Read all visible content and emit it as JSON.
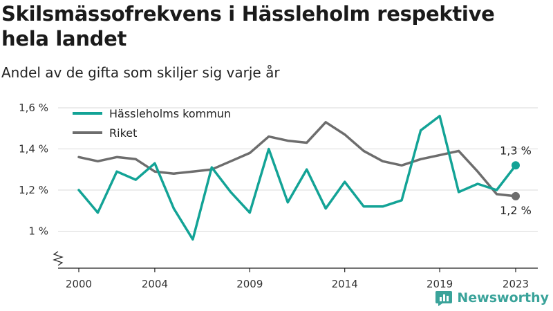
{
  "title": "Skilsmässofrekvens i Hässleholm respektive hela landet",
  "subtitle": "Andel av de gifta som skiljer sig varje år",
  "brand": {
    "name": "Newsworthy",
    "icon": "newsworthy-logo-icon",
    "color": "#3aa39a"
  },
  "chart_data": {
    "type": "line",
    "x": [
      2000,
      2001,
      2002,
      2003,
      2004,
      2005,
      2006,
      2007,
      2008,
      2009,
      2010,
      2011,
      2012,
      2013,
      2014,
      2015,
      2016,
      2017,
      2018,
      2019,
      2020,
      2021,
      2022,
      2023
    ],
    "x_ticks": [
      2000,
      2004,
      2009,
      2014,
      2019,
      2023
    ],
    "x_tick_labels": [
      "2000",
      "2004",
      "2009",
      "2014",
      "2019",
      "2023"
    ],
    "y_ticks": [
      1.0,
      1.2,
      1.4,
      1.6
    ],
    "y_tick_labels": [
      "1 %",
      "1,2 %",
      "1,4 %",
      "1,6 %"
    ],
    "ylim": [
      0.82,
      1.62
    ],
    "y_axis_break": true,
    "grid": "horizontal",
    "legend_position": "top-left",
    "series": [
      {
        "name": "Hässleholms kommun",
        "color": "#13a396",
        "values": [
          1.2,
          1.09,
          1.29,
          1.25,
          1.33,
          1.11,
          0.96,
          1.31,
          1.19,
          1.09,
          1.4,
          1.14,
          1.3,
          1.11,
          1.24,
          1.12,
          1.12,
          1.15,
          1.49,
          1.56,
          1.19,
          1.23,
          1.2,
          1.32
        ],
        "end_label": "1,3 %"
      },
      {
        "name": "Riket",
        "color": "#6d6d6d",
        "values": [
          1.36,
          1.34,
          1.36,
          1.35,
          1.29,
          1.28,
          1.29,
          1.3,
          1.34,
          1.38,
          1.46,
          1.44,
          1.43,
          1.53,
          1.47,
          1.39,
          1.34,
          1.32,
          1.35,
          1.37,
          1.39,
          1.29,
          1.18,
          1.17
        ],
        "end_label": "1,2 %"
      }
    ]
  }
}
